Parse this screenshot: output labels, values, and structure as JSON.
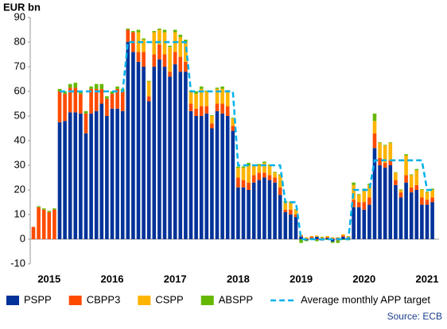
{
  "chart_data": {
    "type": "bar",
    "stacked": true,
    "y_axis_label": "EUR bn",
    "source": "Source: ECB",
    "categories": [
      null,
      null,
      null,
      "2015",
      null,
      null,
      null,
      null,
      null,
      null,
      null,
      null,
      null,
      null,
      null,
      "2016",
      null,
      null,
      null,
      null,
      null,
      null,
      null,
      null,
      null,
      null,
      null,
      "2017",
      null,
      null,
      null,
      null,
      null,
      null,
      null,
      null,
      null,
      null,
      null,
      "2018",
      null,
      null,
      null,
      null,
      null,
      null,
      null,
      null,
      null,
      null,
      null,
      "2019",
      null,
      null,
      null,
      null,
      null,
      null,
      null,
      null,
      null,
      null,
      null,
      "2020",
      null,
      null,
      null,
      null,
      null,
      null,
      null,
      null,
      null,
      null,
      null,
      "2021",
      null
    ],
    "series": [
      {
        "name": "PSPP",
        "color": "#003299",
        "values": [
          0,
          0,
          0,
          0,
          0,
          47.5,
          48,
          51.5,
          51.5,
          51,
          43,
          51,
          52,
          55,
          50,
          53,
          53,
          52,
          80,
          76,
          72,
          70,
          56,
          70,
          73,
          70,
          66,
          71,
          68,
          68,
          52,
          50,
          50,
          51,
          45,
          52,
          51,
          50,
          44,
          21,
          21,
          20,
          23,
          24,
          25,
          24,
          23,
          18,
          11,
          10,
          9,
          1,
          -0.5,
          0.5,
          1,
          -0.5,
          0.5,
          -1,
          0.5,
          1,
          0.5,
          13,
          13,
          12,
          14,
          37,
          30,
          29,
          30,
          22,
          17,
          23,
          19,
          20,
          14,
          14,
          15
        ]
      },
      {
        "name": "CBPP3",
        "color": "#ff4b00",
        "values": [
          5,
          13,
          12,
          11,
          12,
          12.5,
          11,
          10,
          10,
          8,
          8,
          10,
          9,
          6,
          7,
          6,
          8,
          8,
          5,
          8,
          4,
          6,
          2,
          5,
          6,
          5,
          2,
          5,
          6,
          4,
          3,
          3,
          4,
          3,
          2,
          3,
          4,
          4,
          2,
          4,
          3,
          3,
          3,
          3,
          2,
          2,
          2,
          3,
          1,
          2,
          1,
          0.5,
          0.3,
          0.5,
          -0.3,
          0.5,
          0.3,
          0.5,
          -0.5,
          0.5,
          0.3,
          3,
          2,
          3,
          3,
          6,
          3,
          2,
          2,
          2,
          2,
          3,
          2,
          2,
          3,
          2,
          2
        ]
      },
      {
        "name": "CSPP",
        "color": "#ffb400",
        "values": [
          0,
          0,
          0,
          0,
          0,
          0,
          0,
          0,
          0,
          0,
          0,
          0,
          0,
          0,
          0,
          0,
          0,
          0,
          0,
          0,
          8,
          5,
          6,
          9,
          6,
          9,
          10,
          8,
          8,
          8,
          5,
          6,
          7,
          6,
          3,
          6,
          6,
          6,
          3,
          4,
          5,
          7,
          4,
          3,
          4,
          4,
          2,
          5,
          3,
          3,
          2,
          0.3,
          0.5,
          0.3,
          0.5,
          0.3,
          0.5,
          0.3,
          0.3,
          0.5,
          0.5,
          6,
          3,
          5,
          5,
          5,
          6,
          7,
          7,
          3,
          1,
          8,
          5,
          6,
          3,
          3,
          3
        ]
      },
      {
        "name": "ABSPP",
        "color": "#65b800",
        "values": [
          0,
          0.4,
          0.5,
          0.5,
          0.5,
          1,
          1,
          1.5,
          2,
          1,
          1,
          1,
          2,
          2,
          1,
          1,
          1,
          1,
          0.5,
          0.5,
          1,
          0.5,
          0.3,
          0.5,
          0.5,
          1,
          0.5,
          1,
          1,
          1,
          0.3,
          1,
          1,
          0.3,
          0.3,
          0.5,
          1,
          0.5,
          0.3,
          0.5,
          0.5,
          1,
          0.3,
          0.5,
          0.5,
          0.3,
          0.3,
          0.3,
          0.5,
          0.3,
          0.2,
          -1.5,
          -0.3,
          -0.2,
          -0.5,
          0.2,
          -0.3,
          -0.5,
          -1,
          -0.3,
          -0.4,
          1,
          0.3,
          0.5,
          0.5,
          3,
          0.3,
          0.3,
          0.3,
          0.2,
          0.2,
          0.5,
          0.3,
          0.5,
          0.3,
          0.3,
          0.5
        ]
      },
      {
        "name": "Average monthly APP target",
        "type": "line",
        "line_style": "dashed",
        "color": "#00b1ea",
        "values": [
          null,
          null,
          null,
          null,
          null,
          60,
          60,
          60,
          60,
          60,
          60,
          60,
          60,
          60,
          60,
          60,
          60,
          60,
          80,
          80,
          80,
          80,
          80,
          80,
          80,
          80,
          80,
          80,
          80,
          80,
          60,
          60,
          60,
          60,
          60,
          60,
          60,
          60,
          60,
          30,
          30,
          30,
          30,
          30,
          30,
          30,
          30,
          30,
          15,
          15,
          15,
          0,
          0,
          0,
          0,
          0,
          0,
          0,
          0,
          0,
          0,
          20,
          20,
          20,
          20,
          32,
          32,
          32,
          32,
          32,
          32,
          32,
          32,
          32,
          32,
          20,
          20
        ]
      }
    ],
    "ylim": [
      -10,
      90
    ],
    "yticks": [
      -10,
      0,
      10,
      20,
      30,
      40,
      50,
      60,
      70,
      80,
      90
    ]
  }
}
